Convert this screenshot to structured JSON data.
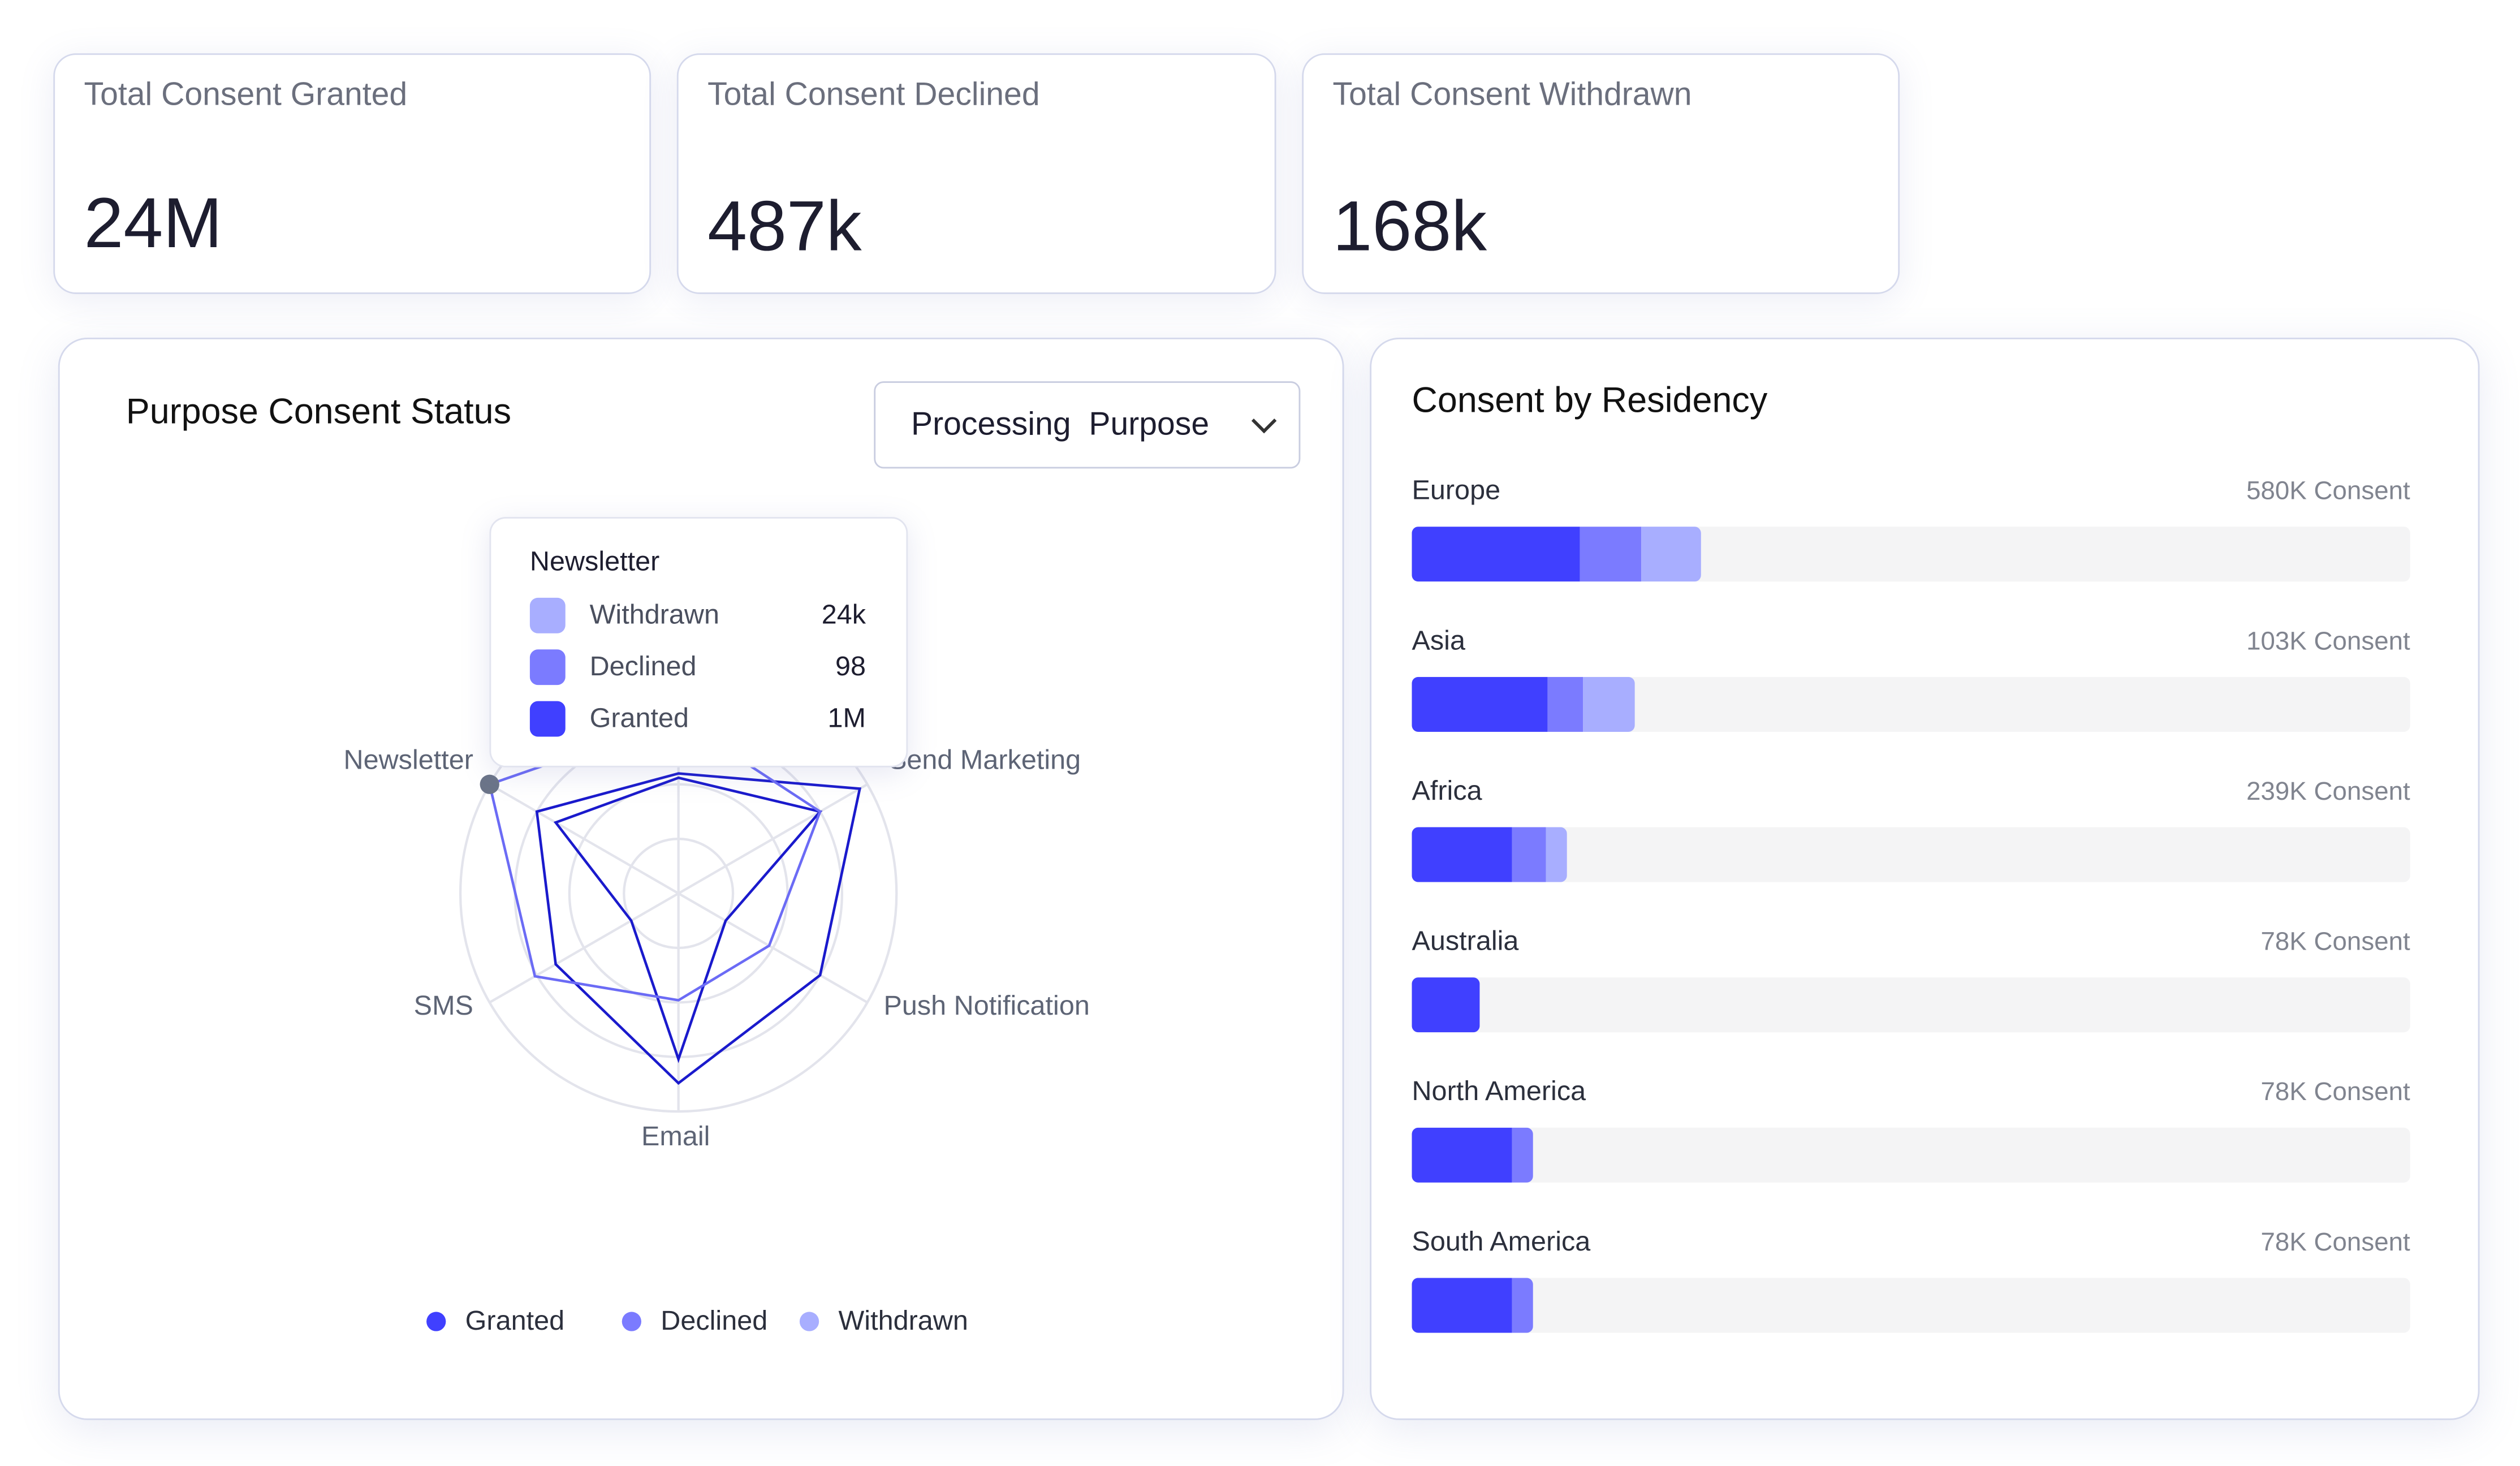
{
  "kpis": [
    {
      "title": "Total Consent Granted",
      "value": "24M"
    },
    {
      "title": "Total Consent Declined",
      "value": "487k"
    },
    {
      "title": "Total Consent Withdrawn",
      "value": "168k"
    }
  ],
  "colors": {
    "granted": "#4040ff",
    "declined": "#7b7bff",
    "withdrawn": "#a8aeff",
    "track": "#f4f4f5"
  },
  "purpose": {
    "title": "Purpose Consent Status",
    "dropdown": {
      "selected": "Processing  Purpose",
      "icon": "chevron-down-icon"
    },
    "tooltip": {
      "title": "Newsletter",
      "rows": [
        {
          "label": "Withdrawn",
          "value": "24k",
          "color": "#a8aeff"
        },
        {
          "label": "Declined",
          "value": "98",
          "color": "#7b7bff"
        },
        {
          "label": "Granted",
          "value": "1M",
          "color": "#4040ff"
        }
      ]
    },
    "legend": [
      {
        "label": "Granted",
        "color": "#4040ff"
      },
      {
        "label": "Declined",
        "color": "#7b7bff"
      },
      {
        "label": "Withdrawn",
        "color": "#a8aeff"
      }
    ]
  },
  "chart_data": {
    "type": "radar",
    "categories": [
      "",
      "Send Marketing",
      "Push Notification",
      "Email",
      "SMS",
      "Newsletter"
    ],
    "rings": 4,
    "grid": true,
    "legend": "bottom",
    "range": [
      0,
      1
    ],
    "series": [
      {
        "name": "Granted",
        "stroke": "#1a1acc",
        "values": [
          0.55,
          0.96,
          0.75,
          0.87,
          0.65,
          0.75
        ]
      },
      {
        "name": "Declined",
        "stroke": "#1a1acc",
        "values": [
          0.53,
          0.75,
          0.25,
          0.76,
          0.25,
          0.65
        ]
      },
      {
        "name": "Withdrawn",
        "stroke": "#6b6bf5",
        "values": [
          0.8,
          0.75,
          0.48,
          0.49,
          0.76,
          1.0
        ]
      }
    ],
    "highlight": {
      "category": "Newsletter",
      "series": "Withdrawn"
    }
  },
  "residency": {
    "title": "Consent by Residency",
    "rows": [
      {
        "name": "Europe",
        "value": "580K Consent",
        "granted": 16.8,
        "declined": 6.1,
        "withdrawn": 6.1
      },
      {
        "name": "Asia",
        "value": "103K Consent",
        "granted": 13.6,
        "declined": 3.6,
        "withdrawn": 5.2
      },
      {
        "name": "Africa",
        "value": "239K Consent",
        "granted": 10.0,
        "declined": 3.4,
        "withdrawn": 2.1
      },
      {
        "name": "Australia",
        "value": "78K Consent",
        "granted": 6.8,
        "declined": 0,
        "withdrawn": 0
      },
      {
        "name": "North America",
        "value": "78K Consent",
        "granted": 10.0,
        "declined": 2.1,
        "withdrawn": 0
      },
      {
        "name": "South America",
        "value": "78K Consent",
        "granted": 10.0,
        "declined": 2.1,
        "withdrawn": 0
      }
    ]
  }
}
